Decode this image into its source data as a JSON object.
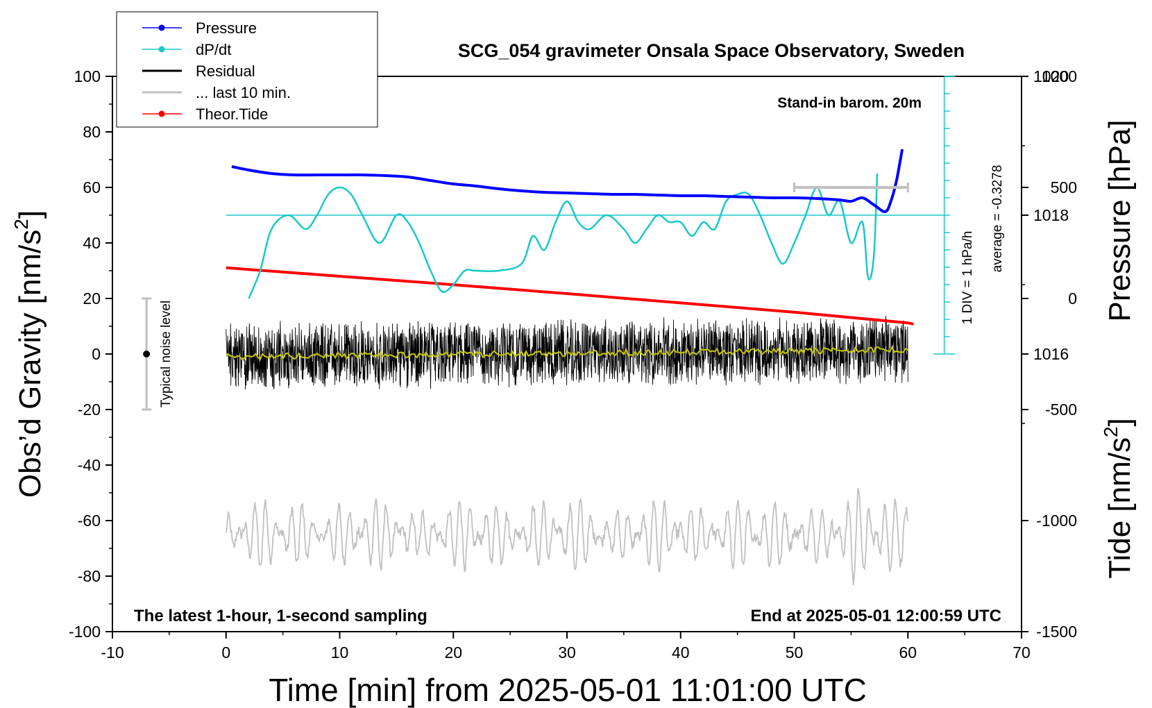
{
  "chart_data": {
    "type": "line",
    "title": "SCG_054 gravimeter Onsala Space Observatory, Sweden",
    "xlabel": "Time [min] from 2025-05-01 11:01:00 UTC",
    "xlim": [
      -10,
      70
    ],
    "x_ticks": [
      -10,
      0,
      10,
      20,
      30,
      40,
      50,
      60,
      70
    ],
    "grid": false,
    "legend_position": "top-left",
    "axes": {
      "left": {
        "label_main": "Obs’d Gravity [nm/s",
        "label_sup": "2",
        "label_tail": "]",
        "ylim": [
          -100,
          100
        ],
        "ticks": [
          -100,
          -80,
          -60,
          -40,
          -20,
          0,
          20,
          40,
          60,
          80,
          100
        ]
      },
      "right_pressure": {
        "label": "Pressure [hPa]",
        "ylim": [
          1012,
          1020
        ],
        "ticks": [
          1016,
          1018,
          1020
        ]
      },
      "right_tide": {
        "label_main": "Tide [nm/s",
        "label_sup": "2",
        "label_tail": "]",
        "ylim": [
          -1500,
          1000
        ],
        "ticks": [
          -1500,
          -1000,
          -500,
          0,
          500,
          1000
        ]
      }
    },
    "annotations": {
      "stand_in": "Stand-in barom. 20m",
      "div": "1 DIV = 1 hPa/h",
      "average": "average = -0.3278",
      "noise": "Typical noise level",
      "latest": "The latest 1-hour, 1-second sampling",
      "end": "End at 2025-05-01 12:00:59 UTC"
    },
    "noise_bar": {
      "x": -7,
      "center": 0,
      "range": [
        -20,
        20
      ]
    },
    "last10_bar": {
      "x": [
        50,
        60
      ],
      "y_tide": 500
    },
    "dpdt_zero_pressure": 1018,
    "series": [
      {
        "name": "Pressure",
        "color": "#0000ff",
        "axis": "right_pressure",
        "x": [
          0.5,
          2,
          4,
          6,
          8,
          10,
          12,
          14,
          16,
          18,
          20,
          22,
          24,
          26,
          28,
          30,
          32,
          34,
          36,
          38,
          40,
          42,
          44,
          46,
          48,
          50,
          52,
          54,
          55,
          56,
          57,
          58,
          58.5,
          59,
          59.5
        ],
        "y": [
          1018.7,
          1018.65,
          1018.6,
          1018.58,
          1018.58,
          1018.58,
          1018.58,
          1018.57,
          1018.55,
          1018.5,
          1018.45,
          1018.42,
          1018.38,
          1018.35,
          1018.33,
          1018.32,
          1018.31,
          1018.3,
          1018.3,
          1018.29,
          1018.28,
          1018.28,
          1018.27,
          1018.26,
          1018.25,
          1018.25,
          1018.24,
          1018.22,
          1018.2,
          1018.25,
          1018.15,
          1018.05,
          1018.2,
          1018.5,
          1018.95
        ]
      },
      {
        "name": "dP/dt",
        "color": "#19c8c8",
        "axis": "right_pressure",
        "x": [
          2,
          3,
          4,
          5.5,
          7,
          8,
          9,
          10,
          11,
          12,
          13.5,
          15,
          16,
          17,
          18,
          19,
          20,
          21,
          22,
          24,
          26,
          27,
          28,
          29,
          30,
          31,
          32,
          33.5,
          35,
          36,
          37,
          38,
          39,
          40,
          41,
          42,
          43,
          44,
          45,
          46,
          47,
          48,
          49,
          50,
          51,
          52,
          53,
          54,
          55,
          56,
          56.5,
          57,
          57.3
        ],
        "y": [
          1016.8,
          1017.2,
          1017.8,
          1018.0,
          1017.8,
          1018.0,
          1018.3,
          1018.4,
          1018.3,
          1018.0,
          1017.6,
          1018.0,
          1017.9,
          1017.6,
          1017.2,
          1016.9,
          1017.0,
          1017.2,
          1017.2,
          1017.2,
          1017.3,
          1017.7,
          1017.5,
          1017.9,
          1018.2,
          1017.9,
          1017.8,
          1018.0,
          1017.8,
          1017.6,
          1017.8,
          1018.0,
          1017.9,
          1017.9,
          1017.7,
          1017.9,
          1017.8,
          1018.2,
          1018.3,
          1018.3,
          1018.0,
          1017.6,
          1017.3,
          1017.6,
          1018.0,
          1018.4,
          1018.0,
          1018.2,
          1017.6,
          1017.9,
          1017.1,
          1017.4,
          1018.6
        ]
      },
      {
        "name": "Residual",
        "color": "#000000",
        "axis": "left",
        "x_range": [
          0,
          60
        ],
        "amplitude": 13,
        "mean_start": -1,
        "mean_end": 1.5
      },
      {
        "name": "... last 10 min.",
        "color": "#c0c0c0",
        "axis": "left",
        "x_range": [
          0,
          60
        ],
        "center": -65,
        "amplitude": 13
      },
      {
        "name": "Theor.Tide",
        "color": "#ff0000",
        "axis": "right_tide",
        "x": [
          0,
          10,
          20,
          30,
          40,
          50,
          60,
          60.5
        ],
        "y": [
          138,
          100,
          62,
          22,
          -20,
          -62,
          -110,
          -115
        ]
      }
    ]
  }
}
